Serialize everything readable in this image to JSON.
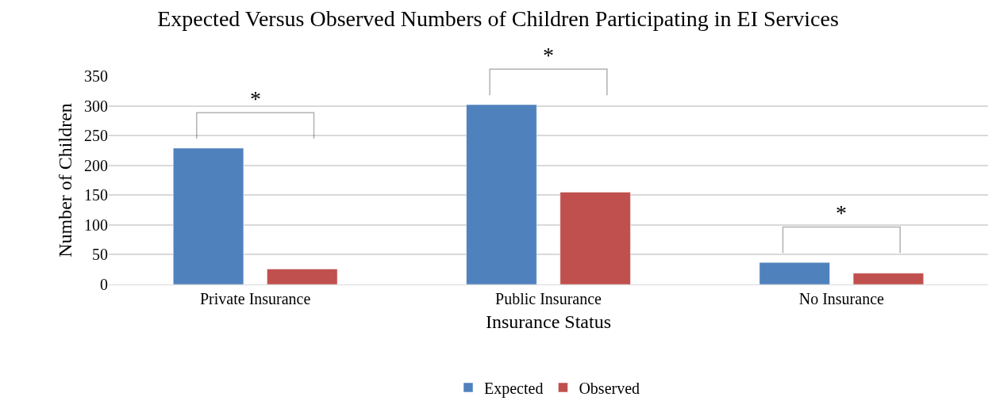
{
  "chart_data": {
    "type": "bar",
    "title": "Expected Versus Observed Numbers of Children Participating in EI Services",
    "xlabel": "Insurance Status",
    "ylabel": "Number of Children",
    "categories": [
      "Private Insurance",
      "Public Insurance",
      "No Insurance"
    ],
    "series": [
      {
        "name": "Expected",
        "color": "#4f81bd",
        "values": [
          229,
          302,
          37
        ]
      },
      {
        "name": "Observed",
        "color": "#c0504d",
        "values": [
          26,
          155,
          19
        ]
      }
    ],
    "ylim": [
      0,
      350
    ],
    "yticks": [
      0,
      50,
      100,
      150,
      200,
      250,
      300,
      350
    ],
    "grid": "y",
    "legend": "bottom",
    "annotations": [
      "*",
      "*",
      "*"
    ]
  }
}
